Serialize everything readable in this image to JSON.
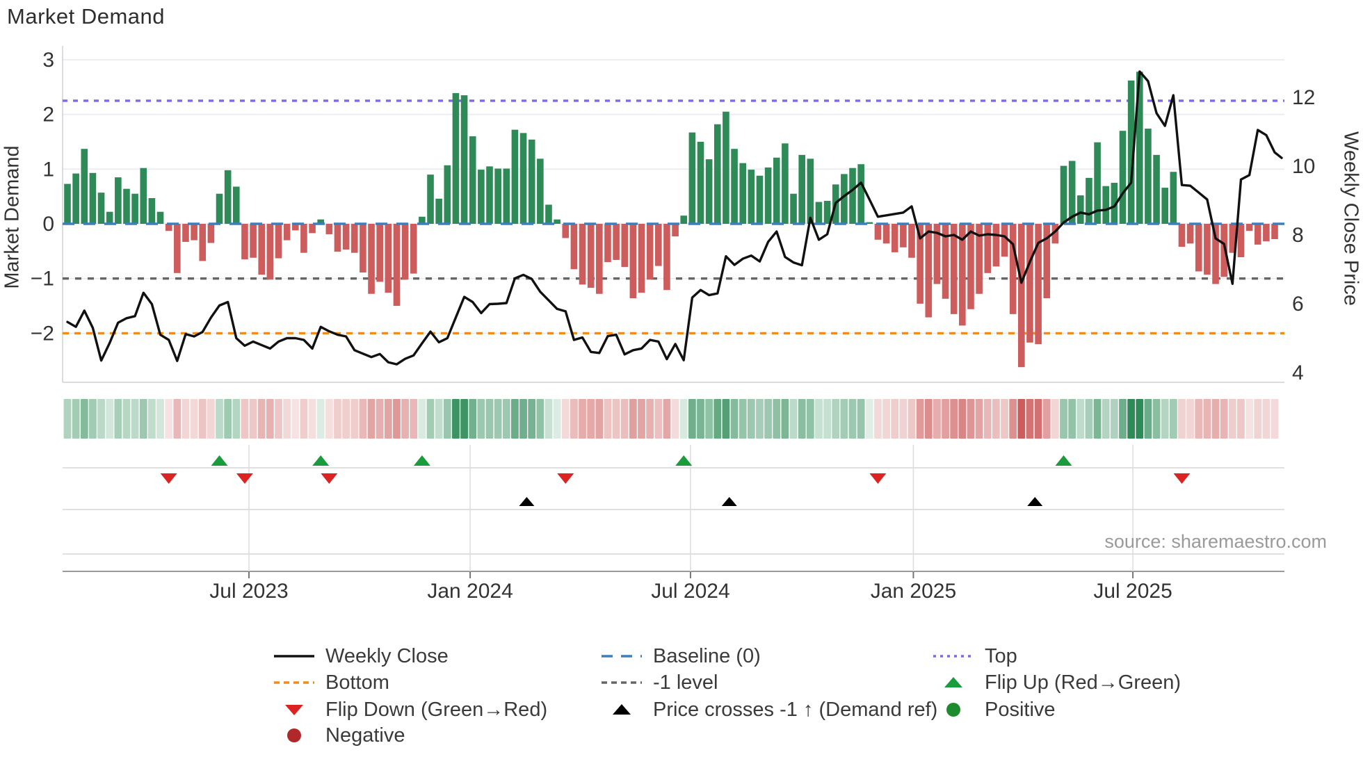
{
  "title": "Market Demand",
  "source": "source: sharemaestro.com",
  "chart_data": {
    "type": "bar",
    "subtype": "combo-bar-line-heatmap",
    "title": "Market Demand",
    "xlabel": "",
    "ylabel_left": "Market Demand",
    "ylabel_right": "Weekly Close Price",
    "y_left_ticks": [
      3,
      2,
      1,
      0,
      -1,
      -2
    ],
    "y_left_range": [
      -2.9,
      3.23
    ],
    "y_right_ticks": [
      12,
      10,
      8,
      6,
      4
    ],
    "y_right_range": [
      3.7,
      13.45
    ],
    "grid": "horizontal",
    "legend_position": "bottom",
    "x_ticks": [
      {
        "label": "Jul 2023",
        "week": 21.5
      },
      {
        "label": "Jan 2024",
        "week": 47.7
      },
      {
        "label": "Jul 2024",
        "week": 73.8
      },
      {
        "label": "Jan 2025",
        "week": 100.2
      },
      {
        "label": "Jul 2025",
        "week": 126.2
      }
    ],
    "levels": {
      "baseline": 0,
      "top": 2.25,
      "minus_one": -1,
      "bottom": -2
    },
    "series": [
      {
        "name": "Market Demand",
        "type": "bar",
        "axis": "left",
        "values": [
          0.73,
          0.92,
          1.37,
          0.93,
          0.57,
          0.22,
          0.85,
          0.64,
          0.55,
          1.02,
          0.47,
          0.22,
          -0.13,
          -0.9,
          -0.33,
          -0.3,
          -0.68,
          -0.35,
          0.55,
          0.98,
          0.68,
          -0.65,
          -0.62,
          -0.93,
          -1.02,
          -0.63,
          -0.3,
          -0.12,
          -0.53,
          -0.17,
          0.08,
          -0.19,
          -0.51,
          -0.47,
          -0.53,
          -0.89,
          -1.28,
          -1.06,
          -1.26,
          -1.5,
          -1.02,
          -0.91,
          0.13,
          0.9,
          0.46,
          1.07,
          2.39,
          2.35,
          1.6,
          0.99,
          1.05,
          1.01,
          1.01,
          1.72,
          1.66,
          1.54,
          1.19,
          0.35,
          0.08,
          -0.26,
          -0.83,
          -1.11,
          -1.17,
          -1.28,
          -0.7,
          -0.66,
          -0.79,
          -1.36,
          -1.26,
          -1.02,
          -0.77,
          -1.21,
          -0.23,
          0.15,
          1.67,
          1.5,
          1.18,
          1.82,
          2.05,
          1.37,
          1.11,
          0.99,
          0.88,
          1.03,
          1.21,
          1.47,
          0.55,
          1.26,
          1.19,
          0.4,
          0.42,
          0.72,
          0.91,
          1.02,
          1.09,
          0.03,
          -0.29,
          -0.36,
          -0.52,
          -0.43,
          -0.62,
          -1.46,
          -1.71,
          -1.1,
          -1.37,
          -1.65,
          -1.86,
          -1.56,
          -1.28,
          -0.9,
          -0.78,
          -0.6,
          -1.65,
          -2.62,
          -2.17,
          -2.2,
          -1.36,
          -0.36,
          1.06,
          1.15,
          0.52,
          0.84,
          1.49,
          0.69,
          0.75,
          1.7,
          2.62,
          2.78,
          1.74,
          1.26,
          0.66,
          0.95,
          -0.42,
          -0.36,
          -0.87,
          -0.93,
          -1.1,
          -0.97,
          -0.53,
          -0.61,
          -0.13,
          -0.38,
          -0.32,
          -0.28
        ]
      },
      {
        "name": "Weekly Close",
        "type": "line",
        "axis": "right",
        "values": [
          5.47,
          5.33,
          5.8,
          5.3,
          4.35,
          4.86,
          5.45,
          5.58,
          5.64,
          6.32,
          5.99,
          5.1,
          4.95,
          4.34,
          5.12,
          5.05,
          5.18,
          5.6,
          5.95,
          6.05,
          5.0,
          4.78,
          4.9,
          4.8,
          4.7,
          4.9,
          5.0,
          5.0,
          4.95,
          4.7,
          5.33,
          5.2,
          5.1,
          5.05,
          4.65,
          4.55,
          4.45,
          4.54,
          4.3,
          4.24,
          4.4,
          4.5,
          4.85,
          5.19,
          4.88,
          5.0,
          5.6,
          6.2,
          6.05,
          5.73,
          5.99,
          6.0,
          6.02,
          6.74,
          6.84,
          6.72,
          6.35,
          6.1,
          5.85,
          5.78,
          4.95,
          5.02,
          4.6,
          4.57,
          5.06,
          5.1,
          4.53,
          4.65,
          4.7,
          4.95,
          4.9,
          4.39,
          4.83,
          4.36,
          6.18,
          6.4,
          6.25,
          6.3,
          7.38,
          7.13,
          7.31,
          7.4,
          7.23,
          7.8,
          8.1,
          7.36,
          7.2,
          7.12,
          8.5,
          7.86,
          8.02,
          8.93,
          9.13,
          9.31,
          9.52,
          9.03,
          8.53,
          8.57,
          8.61,
          8.65,
          8.83,
          7.9,
          8.1,
          8.06,
          7.96,
          8.0,
          7.86,
          8.1,
          7.98,
          8.02,
          8.0,
          7.96,
          7.73,
          6.61,
          7.22,
          7.77,
          7.9,
          8.1,
          8.36,
          8.53,
          8.65,
          8.6,
          8.71,
          8.73,
          8.83,
          9.21,
          9.52,
          12.75,
          12.47,
          11.54,
          11.17,
          12.06,
          9.45,
          9.43,
          9.23,
          9.03,
          7.9,
          7.74,
          6.58,
          9.61,
          9.74,
          11.05,
          10.9,
          10.4
        ]
      }
    ],
    "heatmap": {
      "note": "strip of weekly cells, color sign/intensity follows Market Demand values"
    },
    "markers": {
      "flip_up_weeks": [
        18,
        30,
        42,
        73,
        118
      ],
      "flip_down_weeks": [
        12,
        21,
        31,
        59,
        96,
        132
      ],
      "price_cross_up_weeks": [
        54.4,
        78.4,
        114.6
      ]
    }
  },
  "legend": {
    "items": [
      {
        "label": "Weekly Close",
        "swatch": "solid-line",
        "color": "#111111",
        "col": 0,
        "row": 0
      },
      {
        "label": "Bottom",
        "swatch": "dashed-line",
        "color": "#ef8c1a",
        "col": 0,
        "row": 1
      },
      {
        "label": "Flip Down (Green→Red)",
        "swatch": "triangle-down",
        "color": "#dd2222",
        "col": 0,
        "row": 2
      },
      {
        "label": "Negative",
        "swatch": "dot",
        "color": "#b02828",
        "col": 0,
        "row": 3
      },
      {
        "label": "Baseline (0)",
        "swatch": "long-dash-line",
        "color": "#3d7ebc",
        "col": 1,
        "row": 0
      },
      {
        "label": "-1 level",
        "swatch": "dashed-line",
        "color": "#666666",
        "col": 1,
        "row": 1
      },
      {
        "label": "Price crosses -1 ↑ (Demand ref)",
        "swatch": "triangle-up",
        "color": "#000000",
        "col": 1,
        "row": 2
      },
      {
        "label": "Top",
        "swatch": "dotted-line",
        "color": "#7b68ee",
        "col": 2,
        "row": 0
      },
      {
        "label": "Flip Up (Red→Green)",
        "swatch": "triangle-up",
        "color": "#1a9c3c",
        "col": 2,
        "row": 1
      },
      {
        "label": "Positive",
        "swatch": "dot",
        "color": "#1e8c2e",
        "col": 2,
        "row": 2
      }
    ]
  },
  "colors": {
    "bar_positive": "#2e8b57",
    "bar_negative": "#cd5c5c",
    "price_line": "#111111",
    "baseline": "#3d7ebc",
    "top_level": "#7b68ee",
    "bottom_level": "#ef8c1a",
    "minus_one_level": "#666666",
    "flip_up": "#1a9c3c",
    "flip_down": "#dd2222",
    "price_cross": "#000000",
    "grid": "#e9e9f2",
    "axis_text": "#333333",
    "source_text": "#9a9a9a"
  }
}
